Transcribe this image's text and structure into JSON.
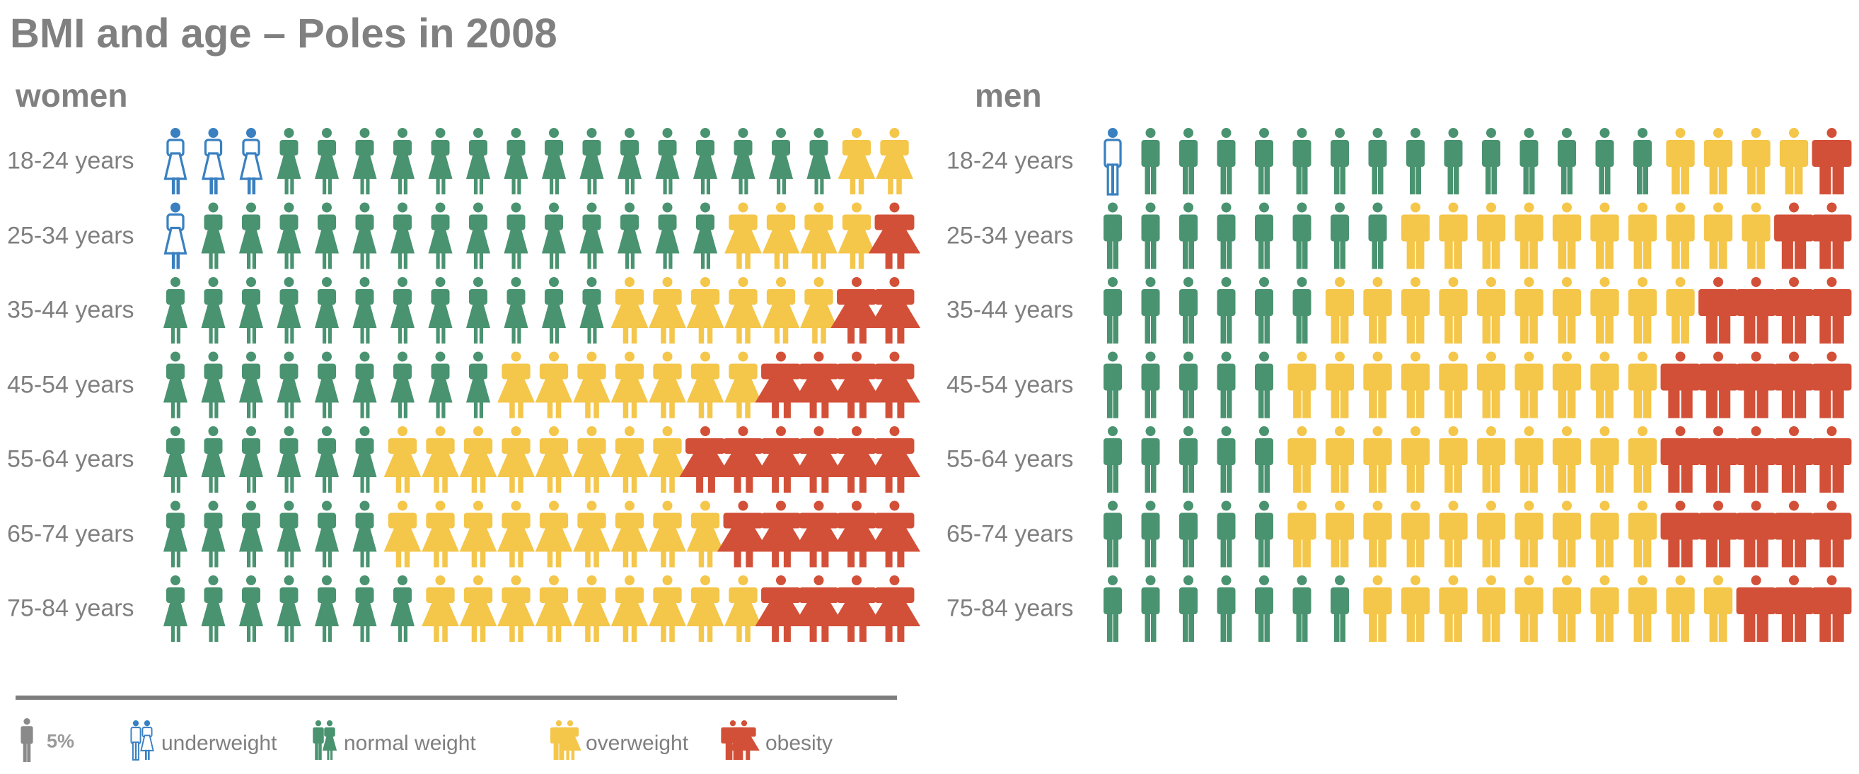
{
  "chart_data": {
    "type": "pictogram",
    "title": "BMI and age – Poles in 2008",
    "unit_label": "5%",
    "categories": [
      "underweight",
      "normal weight",
      "overweight",
      "obesity"
    ],
    "colors": {
      "underweight": "#3a80c0",
      "normal weight": "#4a9370",
      "overweight": "#f4c64a",
      "obesity": "#d35038",
      "unit": "#8a8a8a"
    },
    "panels": [
      {
        "name": "women",
        "rows": [
          {
            "label": "18-24 years",
            "counts": [
              3,
              15,
              2,
              0
            ]
          },
          {
            "label": "25-34 years",
            "counts": [
              1,
              14,
              4,
              1
            ]
          },
          {
            "label": "35-44 years",
            "counts": [
              0,
              12,
              6,
              2
            ]
          },
          {
            "label": "45-54 years",
            "counts": [
              0,
              9,
              7,
              4
            ]
          },
          {
            "label": "55-64 years",
            "counts": [
              0,
              6,
              8,
              6
            ]
          },
          {
            "label": "65-74 years",
            "counts": [
              0,
              6,
              9,
              5
            ]
          },
          {
            "label": "75-84 years",
            "counts": [
              0,
              7,
              9,
              4
            ]
          }
        ]
      },
      {
        "name": "men",
        "rows": [
          {
            "label": "18-24 years",
            "counts": [
              1,
              14,
              4,
              1
            ]
          },
          {
            "label": "25-34 years",
            "counts": [
              0,
              8,
              10,
              2
            ]
          },
          {
            "label": "35-44 years",
            "counts": [
              0,
              6,
              10,
              4
            ]
          },
          {
            "label": "45-54 years",
            "counts": [
              0,
              5,
              10,
              5
            ]
          },
          {
            "label": "55-64 years",
            "counts": [
              0,
              5,
              10,
              5
            ]
          },
          {
            "label": "65-74 years",
            "counts": [
              0,
              5,
              10,
              5
            ]
          },
          {
            "label": "75-84 years",
            "counts": [
              0,
              7,
              10,
              3
            ]
          }
        ]
      }
    ]
  }
}
